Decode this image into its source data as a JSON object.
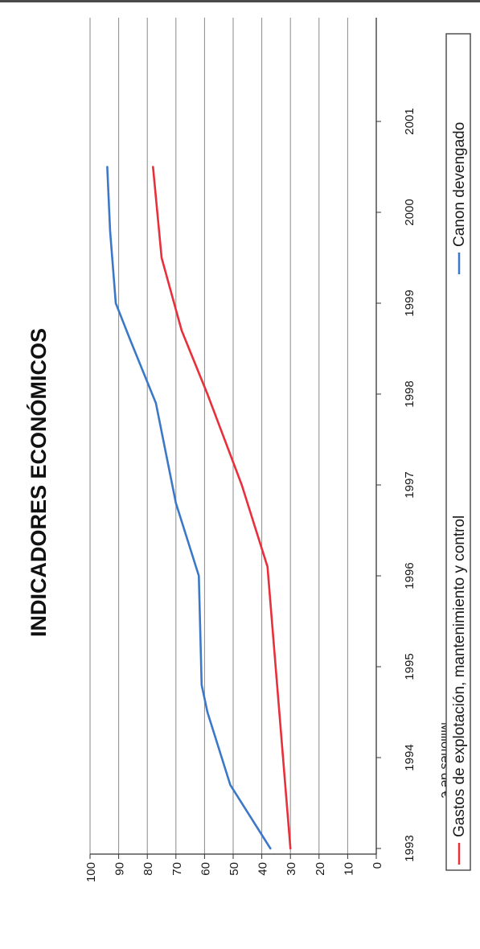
{
  "chart_data": {
    "type": "line",
    "title": "INDICADORES ECONÓMICOS",
    "ylabel": "Millones de €",
    "xlabel": "",
    "x_ticks": [
      "1993",
      "1994",
      "1995",
      "1996",
      "1997",
      "1998",
      "1999",
      "2000",
      "2001"
    ],
    "y_ticks": [
      0,
      10,
      20,
      30,
      40,
      50,
      60,
      70,
      80,
      90,
      100
    ],
    "ylim": [
      0,
      100
    ],
    "grid": true,
    "legend_position": "bottom",
    "series": [
      {
        "name": "Gastos de explotación, mantenimiento y control",
        "color": "#e8303c",
        "points": [
          [
            1993.0,
            30
          ],
          [
            1996.1,
            38
          ],
          [
            1997.0,
            47
          ],
          [
            1998.0,
            59
          ],
          [
            1998.7,
            68
          ],
          [
            1999.5,
            75
          ],
          [
            2000.5,
            78
          ]
        ]
      },
      {
        "name": "Canon devengado",
        "color": "#3c78c8",
        "points": [
          [
            1993.0,
            37
          ],
          [
            1993.7,
            51
          ],
          [
            1994.5,
            59
          ],
          [
            1994.8,
            61
          ],
          [
            1996.0,
            62
          ],
          [
            1996.8,
            70
          ],
          [
            1997.9,
            77
          ],
          [
            1998.6,
            86
          ],
          [
            1999.0,
            91
          ],
          [
            1999.8,
            93
          ],
          [
            2000.5,
            94
          ]
        ]
      }
    ]
  }
}
